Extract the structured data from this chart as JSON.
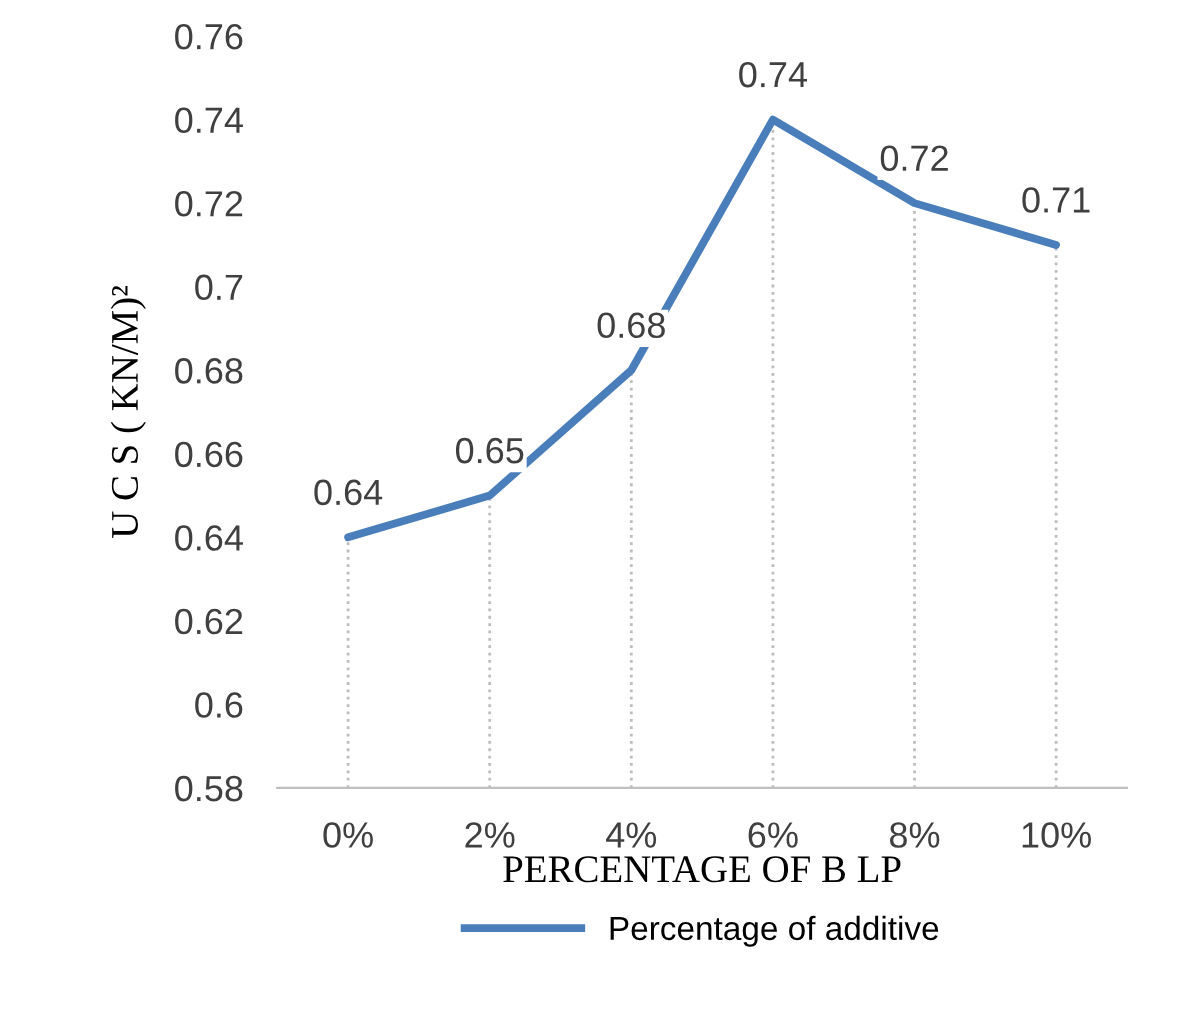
{
  "chart_data": {
    "type": "line",
    "xlabel": "PERCENTAGE OF B LP",
    "ylabel": "U C S ( KN/M)²",
    "categories": [
      "0%",
      "2%",
      "4%",
      "6%",
      "8%",
      "10%"
    ],
    "series": [
      {
        "name": "Percentage of additive",
        "color": "#4a7ebb",
        "values": [
          0.64,
          0.65,
          0.68,
          0.74,
          0.72,
          0.71
        ]
      }
    ],
    "ylim": [
      0.58,
      0.76
    ],
    "yticks": [
      0.58,
      0.6,
      0.62,
      0.64,
      0.66,
      0.68,
      0.7,
      0.72,
      0.74,
      0.76
    ],
    "data_labels": true,
    "legend": "bottom",
    "grid": "x",
    "marker": "none",
    "line_style": "solid"
  }
}
